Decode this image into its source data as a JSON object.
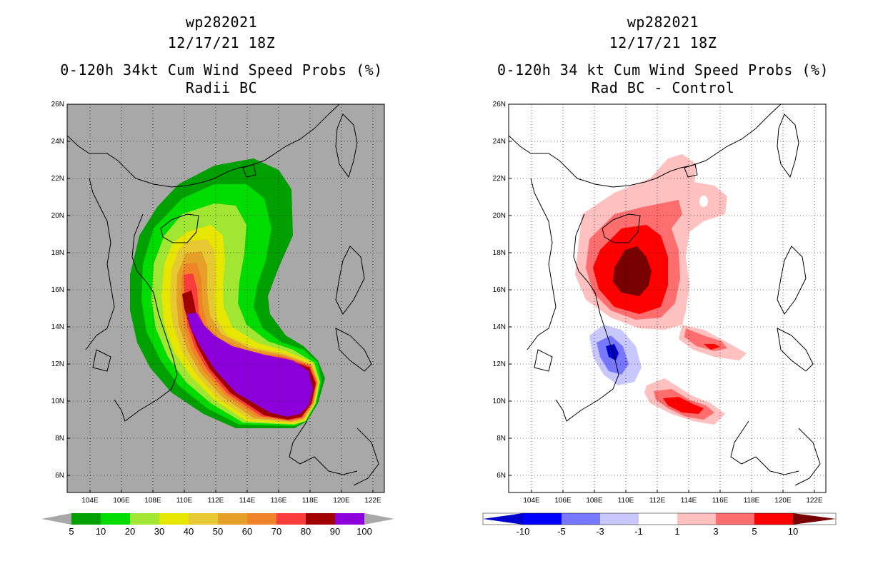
{
  "left": {
    "storm_id": "wp282021",
    "date": "12/17/21 18Z",
    "title": "0-120h 34kt Cum Wind Speed Probs (%)",
    "subtitle": "Radii BC",
    "background_color": "#a8a8a8",
    "colorbar": {
      "colors": [
        "#00a000",
        "#00dc00",
        "#a0e632",
        "#e6e600",
        "#e6c832",
        "#e6a028",
        "#f08228",
        "#fa3c3c",
        "#a00000",
        "#8c00dc"
      ],
      "labels": [
        "5",
        "10",
        "20",
        "30",
        "40",
        "50",
        "60",
        "70",
        "80",
        "90",
        "100"
      ]
    }
  },
  "right": {
    "storm_id": "wp282021",
    "date": "12/17/21 18Z",
    "title": "0-120h 34 kt Cum Wind Speed Probs (%)",
    "subtitle": "Rad BC - Control",
    "background_color": "#ffffff",
    "colorbar": {
      "colors": [
        "#0000cd",
        "#0000ff",
        "#7878ff",
        "#c8c8ff",
        "#ffffff",
        "#ffc0c0",
        "#ff6e6e",
        "#ff0000",
        "#780000"
      ],
      "labels": [
        "-10",
        "-5",
        "-3",
        "-1",
        "1",
        "3",
        "5",
        "10"
      ]
    }
  },
  "map": {
    "lat_labels": [
      "26N",
      "24N",
      "22N",
      "20N",
      "18N",
      "16N",
      "14N",
      "12N",
      "10N",
      "8N",
      "6N"
    ],
    "lon_labels": [
      "104E",
      "106E",
      "108E",
      "110E",
      "112E",
      "114E",
      "116E",
      "118E",
      "120E",
      "122E"
    ]
  }
}
